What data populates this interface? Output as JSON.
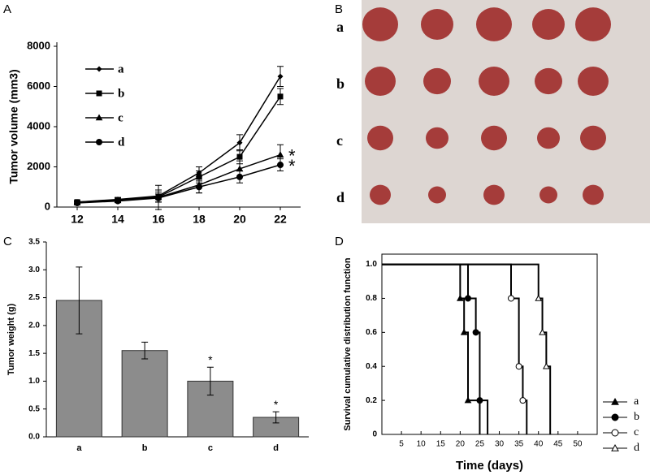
{
  "chart_data": [
    {
      "type": "line",
      "label": "A",
      "ylabel": "Tumor volume (mm3)",
      "x": [
        12,
        14,
        16,
        18,
        20,
        22
      ],
      "xlim": [
        11,
        23
      ],
      "xticks": [
        12,
        14,
        16,
        18,
        20,
        22
      ],
      "ylim": [
        0,
        8000
      ],
      "yticks": [
        0,
        2000,
        4000,
        6000,
        8000
      ],
      "series": [
        {
          "name": "a",
          "color": "#000000",
          "marker": "diamond",
          "values": [
            250,
            380,
            550,
            1700,
            3200,
            6500
          ],
          "errors": [
            80,
            100,
            300,
            300,
            400,
            500
          ]
        },
        {
          "name": "b",
          "color": "#000000",
          "marker": "square",
          "values": [
            250,
            350,
            500,
            1500,
            2500,
            5500
          ],
          "errors": [
            80,
            100,
            250,
            300,
            350,
            400
          ]
        },
        {
          "name": "c",
          "color": "#000000",
          "marker": "triangle",
          "values": [
            220,
            330,
            480,
            1100,
            1900,
            2600
          ],
          "errors": [
            60,
            80,
            600,
            400,
            400,
            500
          ],
          "annotation": "*"
        },
        {
          "name": "d",
          "color": "#000000",
          "marker": "circle",
          "values": [
            200,
            300,
            450,
            1000,
            1500,
            2100
          ],
          "errors": [
            60,
            80,
            200,
            300,
            300,
            300
          ],
          "annotation": "*"
        }
      ]
    },
    {
      "type": "image",
      "label": "B",
      "row_labels": [
        "a",
        "b",
        "c",
        "d"
      ]
    },
    {
      "type": "bar",
      "label": "C",
      "ylabel": "Tumor weight (g)",
      "categories": [
        "a",
        "b",
        "c",
        "d"
      ],
      "values": [
        2.45,
        1.55,
        1.0,
        0.35
      ],
      "errors": [
        0.6,
        0.15,
        0.25,
        0.1
      ],
      "significance": [
        null,
        null,
        "*",
        "*"
      ],
      "color": "#8c8c8c",
      "ylim": [
        0,
        3.5
      ],
      "yticks": [
        {
          "value": 0,
          "label": "0.0"
        },
        0.5,
        {
          "value": 1,
          "label": "1.0"
        },
        1.5,
        {
          "value": 2,
          "label": "2.0"
        },
        2.5,
        {
          "value": 3,
          "label": "3.0"
        },
        3.5
      ]
    },
    {
      "type": "step",
      "label": "D",
      "xlabel": "Time (days)",
      "ylabel": "Survival cumulative distribution function",
      "xlim": [
        0,
        55
      ],
      "xticks": [
        5,
        10,
        15,
        20,
        25,
        30,
        35,
        40,
        45,
        50
      ],
      "ylim": [
        0,
        1.06
      ],
      "yticks": [
        0,
        0.2,
        0.4,
        0.6,
        0.8,
        {
          "value": 1,
          "label": "1.0"
        }
      ],
      "series": [
        {
          "name": "a",
          "color": "#000000",
          "marker": "triangle-filled",
          "x": [
            0,
            20,
            21,
            22,
            25
          ],
          "values": [
            1,
            0.8,
            0.6,
            0.2,
            0
          ]
        },
        {
          "name": "b",
          "color": "#000000",
          "marker": "circle-filled",
          "x": [
            0,
            22,
            24,
            25,
            27
          ],
          "values": [
            1,
            0.8,
            0.6,
            0.2,
            0
          ]
        },
        {
          "name": "c",
          "color": "#000000",
          "marker": "circle-open",
          "x": [
            0,
            33,
            35,
            36,
            37
          ],
          "values": [
            1,
            0.8,
            0.4,
            0.2,
            0
          ]
        },
        {
          "name": "d",
          "color": "#000000",
          "marker": "triangle-open",
          "x": [
            0,
            40,
            41,
            42,
            43
          ],
          "values": [
            1,
            0.8,
            0.6,
            0.4,
            0
          ]
        }
      ]
    }
  ]
}
